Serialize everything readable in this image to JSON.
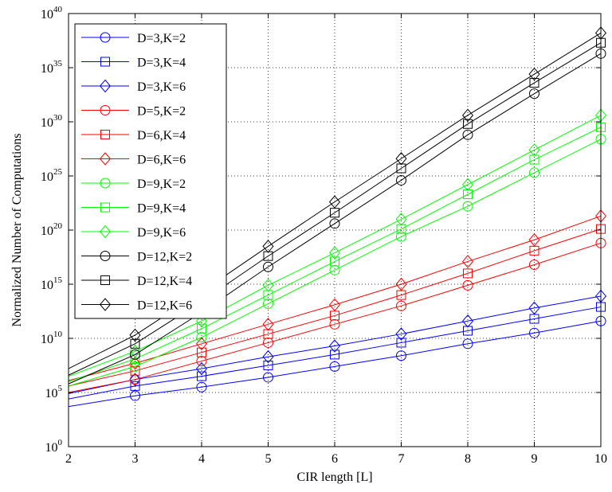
{
  "chart_data": {
    "type": "line",
    "xlabel": "CIR length [L]",
    "ylabel": "Normalized Number of Computations",
    "yscale": "log",
    "xlim": [
      2,
      10
    ],
    "ylim_exponents": [
      0,
      40
    ],
    "x": [
      2,
      3,
      4,
      5,
      6,
      7,
      8,
      9,
      10
    ],
    "x_ticks": [
      "2",
      "3",
      "4",
      "5",
      "6",
      "7",
      "8",
      "9",
      "10"
    ],
    "y_ticks": [
      {
        "base": "10",
        "exp": "0"
      },
      {
        "base": "10",
        "exp": "5"
      },
      {
        "base": "10",
        "exp": "10"
      },
      {
        "base": "10",
        "exp": "15"
      },
      {
        "base": "10",
        "exp": "20"
      },
      {
        "base": "10",
        "exp": "25"
      },
      {
        "base": "10",
        "exp": "30"
      },
      {
        "base": "10",
        "exp": "35"
      },
      {
        "base": "10",
        "exp": "40"
      }
    ],
    "grid": true,
    "legend_position": "top-left",
    "series": [
      {
        "name": "D=3,K=2",
        "color": "#0000ff",
        "marker": "circle",
        "log10_values": [
          3.7,
          4.7,
          5.5,
          6.4,
          7.4,
          8.4,
          9.5,
          10.5,
          11.6
        ]
      },
      {
        "name": "D=3,K=4",
        "color": "#0000ff",
        "marker": "square",
        "log10_values": [
          4.4,
          5.6,
          6.5,
          7.5,
          8.5,
          9.6,
          10.7,
          11.8,
          12.9
        ]
      },
      {
        "name": "D=3,K=6",
        "color": "#0000ff",
        "marker": "diamond",
        "log10_values": [
          4.9,
          6.2,
          7.2,
          8.3,
          9.3,
          10.4,
          11.6,
          12.8,
          13.9
        ]
      },
      {
        "name": "D=5,K=2",
        "color": "#ff0000",
        "marker": "circle",
        "log10_values": [
          5.0,
          6.2,
          7.9,
          9.6,
          11.3,
          13.0,
          14.9,
          16.8,
          18.8
        ]
      },
      {
        "name": "D=6,K=4",
        "color": "#ff0000",
        "marker": "square",
        "log10_values": [
          5.6,
          7.0,
          8.7,
          10.4,
          12.1,
          14.0,
          16.0,
          18.1,
          20.1
        ]
      },
      {
        "name": "D=6,K=6",
        "color": "#ff0000",
        "marker": "diamond",
        "log10_values": [
          6.1,
          7.7,
          9.5,
          11.3,
          13.1,
          15.0,
          17.1,
          19.1,
          21.3
        ]
      },
      {
        "name": "D=9,K=2",
        "color": "#00ff00",
        "marker": "circle",
        "log10_values": [
          5.6,
          7.4,
          10.1,
          13.2,
          16.3,
          19.4,
          22.2,
          25.3,
          28.4
        ]
      },
      {
        "name": "D=9,K=4",
        "color": "#00ff00",
        "marker": "square",
        "log10_values": [
          6.0,
          8.1,
          10.9,
          14.0,
          17.1,
          20.1,
          23.3,
          26.5,
          29.5
        ]
      },
      {
        "name": "D=9,K=6",
        "color": "#00ff00",
        "marker": "diamond",
        "log10_values": [
          6.5,
          8.8,
          11.6,
          14.9,
          17.9,
          21.0,
          24.2,
          27.4,
          30.6
        ]
      },
      {
        "name": "D=12,K=2",
        "color": "#000000",
        "marker": "circle",
        "log10_values": [
          5.8,
          8.5,
          12.4,
          16.6,
          20.6,
          24.6,
          28.8,
          32.6,
          36.3
        ]
      },
      {
        "name": "D=12,K=4",
        "color": "#000000",
        "marker": "square",
        "log10_values": [
          6.6,
          9.5,
          13.4,
          17.6,
          21.6,
          25.7,
          29.8,
          33.6,
          37.3
        ]
      },
      {
        "name": "D=12,K=6",
        "color": "#000000",
        "marker": "diamond",
        "log10_values": [
          7.2,
          10.3,
          14.3,
          18.5,
          22.6,
          26.6,
          30.6,
          34.4,
          38.2
        ]
      }
    ]
  }
}
